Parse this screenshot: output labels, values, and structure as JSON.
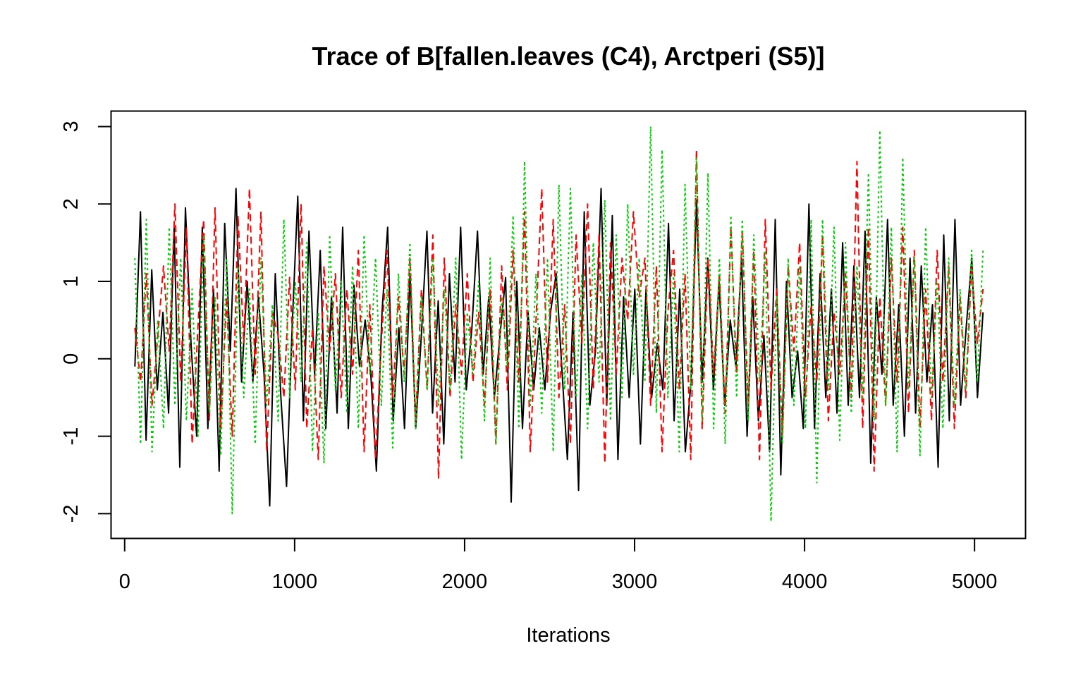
{
  "chart_data": {
    "type": "line",
    "title": "Trace of B[fallen.leaves (C4), Arctperi (S5)]",
    "xlabel": "Iterations",
    "ylabel": "",
    "xlim": [
      -80,
      5300
    ],
    "ylim": [
      -2.32,
      3.2
    ],
    "x_ticks": [
      0,
      1000,
      2000,
      3000,
      4000,
      5000
    ],
    "x_tick_labels": [
      "0",
      "1000",
      "2000",
      "3000",
      "4000",
      "5000"
    ],
    "y_ticks": [
      -2,
      -1,
      0,
      1,
      2,
      3
    ],
    "y_tick_labels": [
      "-2",
      "-1",
      "0",
      "1",
      "2",
      "3"
    ],
    "grid": false,
    "legend": "none",
    "x_start": 60,
    "x_step": 5,
    "series": [
      {
        "color": "#000000",
        "dash": "solid",
        "values": [
          -0.1,
          1.9,
          -1.05,
          1.15,
          -0.4,
          0.6,
          -0.7,
          1.7,
          -1.4,
          1.95,
          0.2,
          -1.0,
          1.7,
          -0.9,
          0.9,
          -1.45,
          1.75,
          0.1,
          2.2,
          -0.3,
          1.0,
          -0.3,
          0.8,
          -0.2,
          -1.9,
          1.1,
          -0.5,
          -1.65,
          0.4,
          2.1,
          -0.8,
          1.65,
          -0.2,
          1.4,
          -0.9,
          0.8,
          -0.7,
          1.7,
          -0.9,
          0.95,
          -0.1,
          0.5,
          -0.2,
          -1.45,
          0.6,
          1.7,
          -0.8,
          0.4,
          -0.9,
          1.1,
          -0.9,
          0.3,
          1.65,
          -0.7,
          0.75,
          -1.1,
          1.1,
          -0.3,
          1.7,
          -0.4,
          0.4,
          1.65,
          -0.2,
          0.8,
          -0.5,
          0.3,
          1.05,
          -1.85,
          1.0,
          -0.9,
          0.6,
          -0.4,
          0.4,
          -0.4,
          0.6,
          1.1,
          -0.1,
          -1.3,
          0.6,
          -1.7,
          1.9,
          -0.6,
          0.1,
          2.2,
          -0.6,
          1.85,
          -1.3,
          0.8,
          -0.5,
          0.9,
          -1.1,
          0.9,
          -0.5,
          0.2,
          -0.4,
          1.75,
          -0.8,
          0.9,
          -1.2,
          -0.3,
          2.05,
          -0.3,
          1.3,
          -0.4,
          1.0,
          -0.6,
          0.5,
          -0.1,
          1.3,
          -1.0,
          0.8,
          -0.8,
          0.3,
          -1.2,
          1.8,
          -1.5,
          1.0,
          -0.5,
          0.1,
          -0.9,
          2.0,
          -0.9,
          1.1,
          -0.5,
          0.9,
          -0.7,
          1.5,
          -0.6,
          1.2,
          -0.5,
          1.65,
          -1.35,
          0.8,
          -0.2,
          1.8,
          -0.6,
          0.7,
          -1.0,
          1.3,
          -0.7,
          1.2,
          -0.3,
          0.7,
          -1.4,
          1.6,
          -0.8,
          1.8,
          -0.6,
          0.4,
          1.3,
          -0.5,
          0.6
        ]
      },
      {
        "color": "#ff0000",
        "dash": "10,6",
        "values": [
          0.4,
          -0.3,
          1.1,
          -0.6,
          0.3,
          1.2,
          0.1,
          2.0,
          -0.3,
          1.7,
          -1.1,
          0.4,
          1.8,
          -0.8,
          1.95,
          -0.9,
          0.8,
          -1.0,
          1.85,
          0.2,
          2.2,
          -0.2,
          1.9,
          -1.2,
          0.6,
          0.3,
          -0.5,
          1.05,
          -0.4,
          2.0,
          -0.9,
          0.4,
          -1.3,
          1.2,
          0.1,
          1.1,
          -0.5,
          0.9,
          -0.2,
          1.4,
          -1.2,
          0.7,
          -1.3,
          0.2,
          1.4,
          -0.5,
          0.8,
          -0.2,
          1.3,
          -0.8,
          0.9,
          -0.4,
          1.6,
          -1.55,
          1.3,
          -0.5,
          0.7,
          -0.2,
          1.1,
          -0.3,
          0.6,
          -0.6,
          0.9,
          -1.1,
          1.2,
          -0.4,
          1.4,
          -0.3,
          1.9,
          -1.2,
          0.5,
          2.2,
          -0.3,
          1.8,
          -0.5,
          0.7,
          -1.1,
          1.6,
          0.2,
          2.0,
          -0.4,
          1.6,
          -1.35,
          1.5,
          -0.2,
          1.3,
          0.5,
          1.9,
          0.8,
          1.3,
          -0.6,
          1.2,
          -1.2,
          0.6,
          1.4,
          -0.4,
          1.1,
          -1.3,
          2.7,
          -0.9,
          1.3,
          -0.2,
          1.1,
          -0.7,
          1.7,
          -0.2,
          1.65,
          -0.6,
          1.4,
          -1.3,
          1.8,
          -0.4,
          0.9,
          -1.0,
          1.2,
          0.1,
          1.5,
          -0.5,
          0.7,
          -0.3,
          1.6,
          -0.8,
          0.6,
          -0.2,
          1.1,
          -0.5,
          2.55,
          -0.9,
          1.7,
          -1.45,
          0.8,
          -0.6,
          1.3,
          -0.3,
          1.7,
          -0.7,
          1.4,
          -0.9,
          0.9,
          -0.8,
          1.4,
          -0.3,
          1.2,
          -0.9,
          0.8,
          -0.5,
          1.2,
          0.2,
          0.9
        ]
      },
      {
        "color": "#00cd00",
        "dash": "3,4",
        "values": [
          1.3,
          -1.1,
          1.8,
          -1.2,
          0.5,
          -0.9,
          1.7,
          -0.6,
          1.3,
          -0.8,
          0.9,
          -1.0,
          1.6,
          -0.7,
          0.8,
          -1.25,
          1.3,
          -2.0,
          1.2,
          -0.5,
          0.9,
          -1.1,
          1.3,
          -0.6,
          0.7,
          -0.8,
          1.8,
          -0.5,
          1.0,
          -0.3,
          1.5,
          -1.2,
          0.6,
          -1.35,
          1.6,
          -0.4,
          1.0,
          -0.7,
          1.2,
          -0.9,
          1.6,
          -0.2,
          1.3,
          -0.6,
          0.9,
          -1.15,
          1.1,
          -0.3,
          1.5,
          -0.9,
          0.8,
          -0.4,
          1.3,
          -0.6,
          0.9,
          -0.4,
          1.3,
          -1.3,
          0.6,
          -0.2,
          1.0,
          -0.8,
          1.3,
          -1.1,
          0.8,
          -0.1,
          1.85,
          -0.9,
          2.55,
          -0.6,
          1.1,
          -0.7,
          1.3,
          -1.2,
          2.25,
          -0.4,
          2.2,
          -0.5,
          1.1,
          -0.9,
          1.5,
          -0.3,
          2.05,
          -0.8,
          1.6,
          -0.5,
          2.0,
          -0.2,
          1.3,
          -0.3,
          3.0,
          -0.7,
          2.7,
          -0.5,
          1.1,
          -1.2,
          2.25,
          -0.4,
          2.6,
          -0.8,
          2.4,
          -0.9,
          1.3,
          -1.1,
          1.85,
          -0.5,
          1.8,
          -0.8,
          1.6,
          -0.3,
          1.4,
          -2.1,
          0.8,
          -1.1,
          1.3,
          -0.6,
          1.2,
          -0.9,
          1.8,
          -1.6,
          1.8,
          -0.4,
          1.7,
          -1.05,
          1.5,
          -0.7,
          1.2,
          -0.5,
          2.4,
          -0.8,
          2.95,
          -0.6,
          1.7,
          -1.2,
          2.6,
          -0.4,
          1.3,
          -1.25,
          1.7,
          -0.5,
          1.0,
          -0.9,
          1.3,
          -0.6,
          0.9,
          -0.4,
          1.4,
          -0.3,
          1.4
        ]
      }
    ]
  }
}
